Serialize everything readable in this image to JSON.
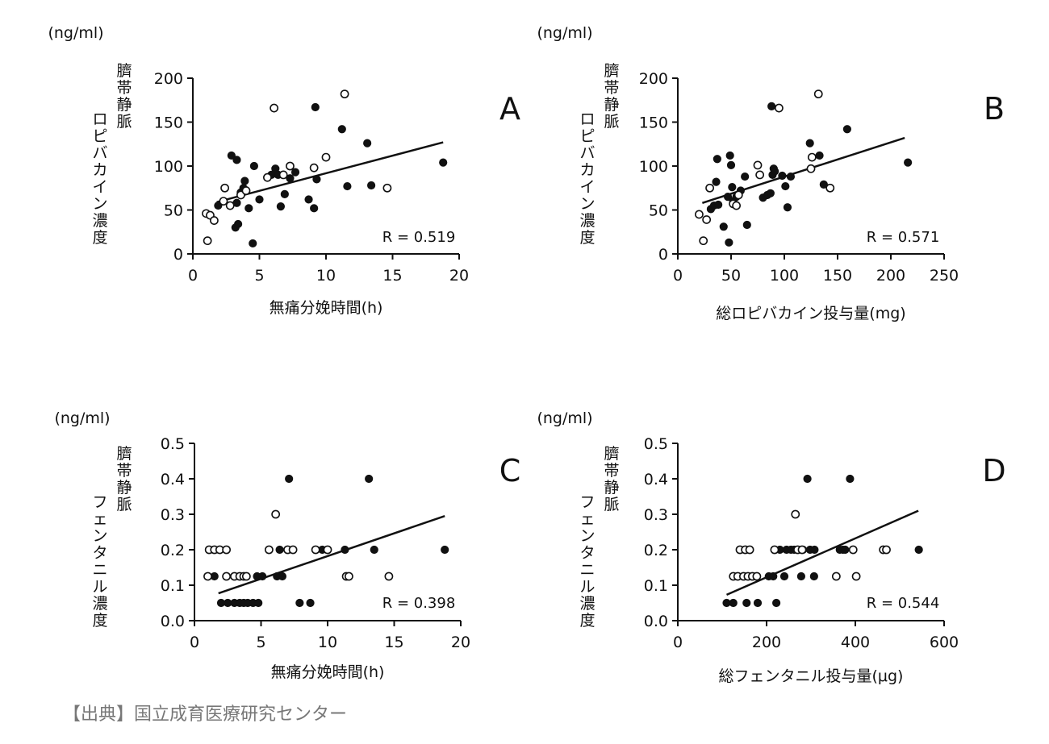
{
  "source": "【出典】国立成育医療研究センター",
  "unit": "(ng/ml)",
  "chart_data": [
    {
      "id": "A",
      "type": "scatter",
      "panel_label": "A",
      "unit": "(ng/ml)",
      "ylabel_lines": [
        "臍帯静脈",
        "ロピバカイン濃度"
      ],
      "xlabel": "無痛分娩時間(h)",
      "xlim": [
        0,
        20
      ],
      "ylim": [
        0,
        200
      ],
      "xticks": [
        0,
        5,
        10,
        15,
        20
      ],
      "yticks": [
        0,
        50,
        100,
        150,
        200
      ],
      "xtick_labels": [
        "0",
        "5",
        "10",
        "15",
        "20"
      ],
      "ytick_labels": [
        "0",
        "50",
        "100",
        "150",
        "200"
      ],
      "r_text": "R = 0.519",
      "fit_line": [
        [
          1.8,
          59
        ],
        [
          18.8,
          127
        ]
      ],
      "series": [
        {
          "name": "filled",
          "style": "filled",
          "points": [
            [
              1.9,
              55
            ],
            [
              2.9,
              112
            ],
            [
              3.3,
              107
            ],
            [
              3.2,
              30
            ],
            [
              3.4,
              34
            ],
            [
              3.3,
              58
            ],
            [
              3.6,
              70
            ],
            [
              3.9,
              83
            ],
            [
              3.8,
              75
            ],
            [
              4.2,
              52
            ],
            [
              4.5,
              12
            ],
            [
              4.6,
              100
            ],
            [
              5.0,
              62
            ],
            [
              5.9,
              90
            ],
            [
              6.2,
              97
            ],
            [
              6.4,
              90
            ],
            [
              6.6,
              54
            ],
            [
              6.9,
              68
            ],
            [
              7.3,
              86
            ],
            [
              7.7,
              93
            ],
            [
              8.7,
              62
            ],
            [
              9.1,
              52
            ],
            [
              9.3,
              85
            ],
            [
              9.2,
              167
            ],
            [
              11.2,
              142
            ],
            [
              11.6,
              77
            ],
            [
              13.1,
              126
            ],
            [
              13.4,
              78
            ],
            [
              18.8,
              104
            ]
          ]
        },
        {
          "name": "open",
          "style": "open",
          "points": [
            [
              1.0,
              46
            ],
            [
              1.1,
              15
            ],
            [
              1.3,
              44
            ],
            [
              1.6,
              38
            ],
            [
              2.3,
              60
            ],
            [
              2.4,
              75
            ],
            [
              2.8,
              55
            ],
            [
              3.6,
              67
            ],
            [
              4.0,
              72
            ],
            [
              5.6,
              87
            ],
            [
              6.1,
              166
            ],
            [
              6.8,
              90
            ],
            [
              7.3,
              100
            ],
            [
              9.1,
              98
            ],
            [
              10.0,
              110
            ],
            [
              11.4,
              182
            ],
            [
              14.6,
              75
            ]
          ]
        }
      ]
    },
    {
      "id": "B",
      "type": "scatter",
      "panel_label": "B",
      "unit": "(ng/ml)",
      "ylabel_lines": [
        "臍帯静脈",
        "ロピバカイン濃度"
      ],
      "xlabel": "総ロピバカイン投与量(mg)",
      "xlim": [
        0,
        250
      ],
      "ylim": [
        0,
        200
      ],
      "xticks": [
        0,
        50,
        100,
        150,
        200,
        250
      ],
      "yticks": [
        0,
        50,
        100,
        150,
        200
      ],
      "xtick_labels": [
        "0",
        "50",
        "100",
        "150",
        "200",
        "250"
      ],
      "ytick_labels": [
        "0",
        "50",
        "100",
        "150",
        "200"
      ],
      "r_text": "R = 0.571",
      "fit_line": [
        [
          23,
          58
        ],
        [
          213,
          132
        ]
      ],
      "series": [
        {
          "name": "filled",
          "style": "filled",
          "points": [
            [
              31,
              51
            ],
            [
              34,
              55
            ],
            [
              36,
              82
            ],
            [
              37,
              108
            ],
            [
              38,
              56
            ],
            [
              43,
              31
            ],
            [
              47,
              65
            ],
            [
              48,
              13
            ],
            [
              49,
              112
            ],
            [
              50,
              101
            ],
            [
              51,
              76
            ],
            [
              52,
              60
            ],
            [
              55,
              65
            ],
            [
              59,
              72
            ],
            [
              63,
              88
            ],
            [
              65,
              33
            ],
            [
              80,
              64
            ],
            [
              84,
              67
            ],
            [
              87,
              69
            ],
            [
              88,
              168
            ],
            [
              89,
              90
            ],
            [
              90,
              97
            ],
            [
              91,
              94
            ],
            [
              98,
              89
            ],
            [
              101,
              77
            ],
            [
              103,
              53
            ],
            [
              106,
              88
            ],
            [
              124,
              126
            ],
            [
              133,
              112
            ],
            [
              137,
              79
            ],
            [
              159,
              142
            ],
            [
              216,
              104
            ]
          ]
        },
        {
          "name": "open",
          "style": "open",
          "points": [
            [
              20,
              45
            ],
            [
              24,
              15
            ],
            [
              27,
              39
            ],
            [
              30,
              75
            ],
            [
              52,
              57
            ],
            [
              55,
              55
            ],
            [
              57,
              67
            ],
            [
              75,
              101
            ],
            [
              77,
              90
            ],
            [
              95,
              166
            ],
            [
              125,
              97
            ],
            [
              126,
              110
            ],
            [
              132,
              182
            ],
            [
              143,
              75
            ]
          ]
        }
      ]
    },
    {
      "id": "C",
      "type": "scatter",
      "panel_label": "C",
      "unit": "(ng/ml)",
      "ylabel_lines": [
        "臍帯静脈",
        "フェンタニル濃度"
      ],
      "xlabel": "無痛分娩時間(h)",
      "xlim": [
        0,
        20
      ],
      "ylim": [
        0,
        0.5
      ],
      "xticks": [
        0,
        5,
        10,
        15,
        20
      ],
      "yticks": [
        0,
        0.1,
        0.2,
        0.3,
        0.4,
        0.5
      ],
      "xtick_labels": [
        "0",
        "5",
        "10",
        "15",
        "20"
      ],
      "ytick_labels": [
        "0.0",
        "0.1",
        "0.2",
        "0.3",
        "0.4",
        "0.5"
      ],
      "r_text": "R = 0.398",
      "fit_line": [
        [
          1.8,
          0.077
        ],
        [
          18.8,
          0.295
        ]
      ],
      "series": [
        {
          "name": "filled",
          "style": "filled",
          "points": [
            [
              1.5,
              0.125
            ],
            [
              2.0,
              0.05
            ],
            [
              2.5,
              0.05
            ],
            [
              3.0,
              0.05
            ],
            [
              3.4,
              0.05
            ],
            [
              3.7,
              0.05
            ],
            [
              4.0,
              0.05
            ],
            [
              4.4,
              0.05
            ],
            [
              4.8,
              0.05
            ],
            [
              4.7,
              0.125
            ],
            [
              5.1,
              0.125
            ],
            [
              6.2,
              0.125
            ],
            [
              6.6,
              0.125
            ],
            [
              6.4,
              0.2
            ],
            [
              7.0,
              0.2
            ],
            [
              7.1,
              0.4
            ],
            [
              7.9,
              0.05
            ],
            [
              8.7,
              0.05
            ],
            [
              9.6,
              0.2
            ],
            [
              11.3,
              0.2
            ],
            [
              13.1,
              0.4
            ],
            [
              13.5,
              0.2
            ],
            [
              18.8,
              0.2
            ]
          ]
        },
        {
          "name": "open",
          "style": "open",
          "points": [
            [
              1.0,
              0.125
            ],
            [
              1.1,
              0.2
            ],
            [
              1.5,
              0.2
            ],
            [
              1.9,
              0.2
            ],
            [
              2.4,
              0.2
            ],
            [
              2.4,
              0.125
            ],
            [
              3.0,
              0.125
            ],
            [
              3.4,
              0.125
            ],
            [
              3.7,
              0.125
            ],
            [
              3.9,
              0.125
            ],
            [
              5.6,
              0.2
            ],
            [
              6.1,
              0.3
            ],
            [
              7.0,
              0.2
            ],
            [
              7.4,
              0.2
            ],
            [
              9.1,
              0.2
            ],
            [
              10.0,
              0.2
            ],
            [
              11.4,
              0.125
            ],
            [
              11.6,
              0.125
            ],
            [
              14.6,
              0.125
            ]
          ]
        }
      ]
    },
    {
      "id": "D",
      "type": "scatter",
      "panel_label": "D",
      "unit": "(ng/ml)",
      "ylabel_lines": [
        "臍帯静脈",
        "フェンタニル濃度"
      ],
      "xlabel": "総フェンタニル投与量(μg)",
      "xlim": [
        0,
        600
      ],
      "ylim": [
        0,
        0.5
      ],
      "xticks": [
        0,
        200,
        400,
        600
      ],
      "yticks": [
        0,
        0.1,
        0.2,
        0.3,
        0.4,
        0.5
      ],
      "xtick_labels": [
        "0",
        "200",
        "400",
        "600"
      ],
      "ytick_labels": [
        "0.0",
        "0.1",
        "0.2",
        "0.3",
        "0.4",
        "0.5"
      ],
      "r_text": "R = 0.544",
      "fit_line": [
        [
          110,
          0.073
        ],
        [
          542,
          0.31
        ]
      ],
      "series": [
        {
          "name": "filled",
          "style": "filled",
          "points": [
            [
              110,
              0.05
            ],
            [
              125,
              0.05
            ],
            [
              155,
              0.05
            ],
            [
              180,
              0.05
            ],
            [
              205,
              0.125
            ],
            [
              215,
              0.125
            ],
            [
              222,
              0.05
            ],
            [
              230,
              0.2
            ],
            [
              240,
              0.125
            ],
            [
              245,
              0.2
            ],
            [
              255,
              0.2
            ],
            [
              262,
              0.2
            ],
            [
              278,
              0.125
            ],
            [
              282,
              0.2
            ],
            [
              292,
              0.4
            ],
            [
              298,
              0.2
            ],
            [
              307,
              0.125
            ],
            [
              308,
              0.2
            ],
            [
              365,
              0.2
            ],
            [
              372,
              0.2
            ],
            [
              377,
              0.2
            ],
            [
              388,
              0.4
            ],
            [
              468,
              0.2
            ],
            [
              543,
              0.2
            ]
          ]
        },
        {
          "name": "open",
          "style": "open",
          "points": [
            [
              125,
              0.125
            ],
            [
              135,
              0.125
            ],
            [
              140,
              0.2
            ],
            [
              148,
              0.125
            ],
            [
              152,
              0.2
            ],
            [
              158,
              0.125
            ],
            [
              162,
              0.2
            ],
            [
              168,
              0.125
            ],
            [
              178,
              0.125
            ],
            [
              218,
              0.2
            ],
            [
              265,
              0.3
            ],
            [
              270,
              0.2
            ],
            [
              280,
              0.2
            ],
            [
              357,
              0.125
            ],
            [
              395,
              0.2
            ],
            [
              402,
              0.125
            ],
            [
              463,
              0.2
            ],
            [
              470,
              0.2
            ]
          ]
        }
      ]
    }
  ]
}
